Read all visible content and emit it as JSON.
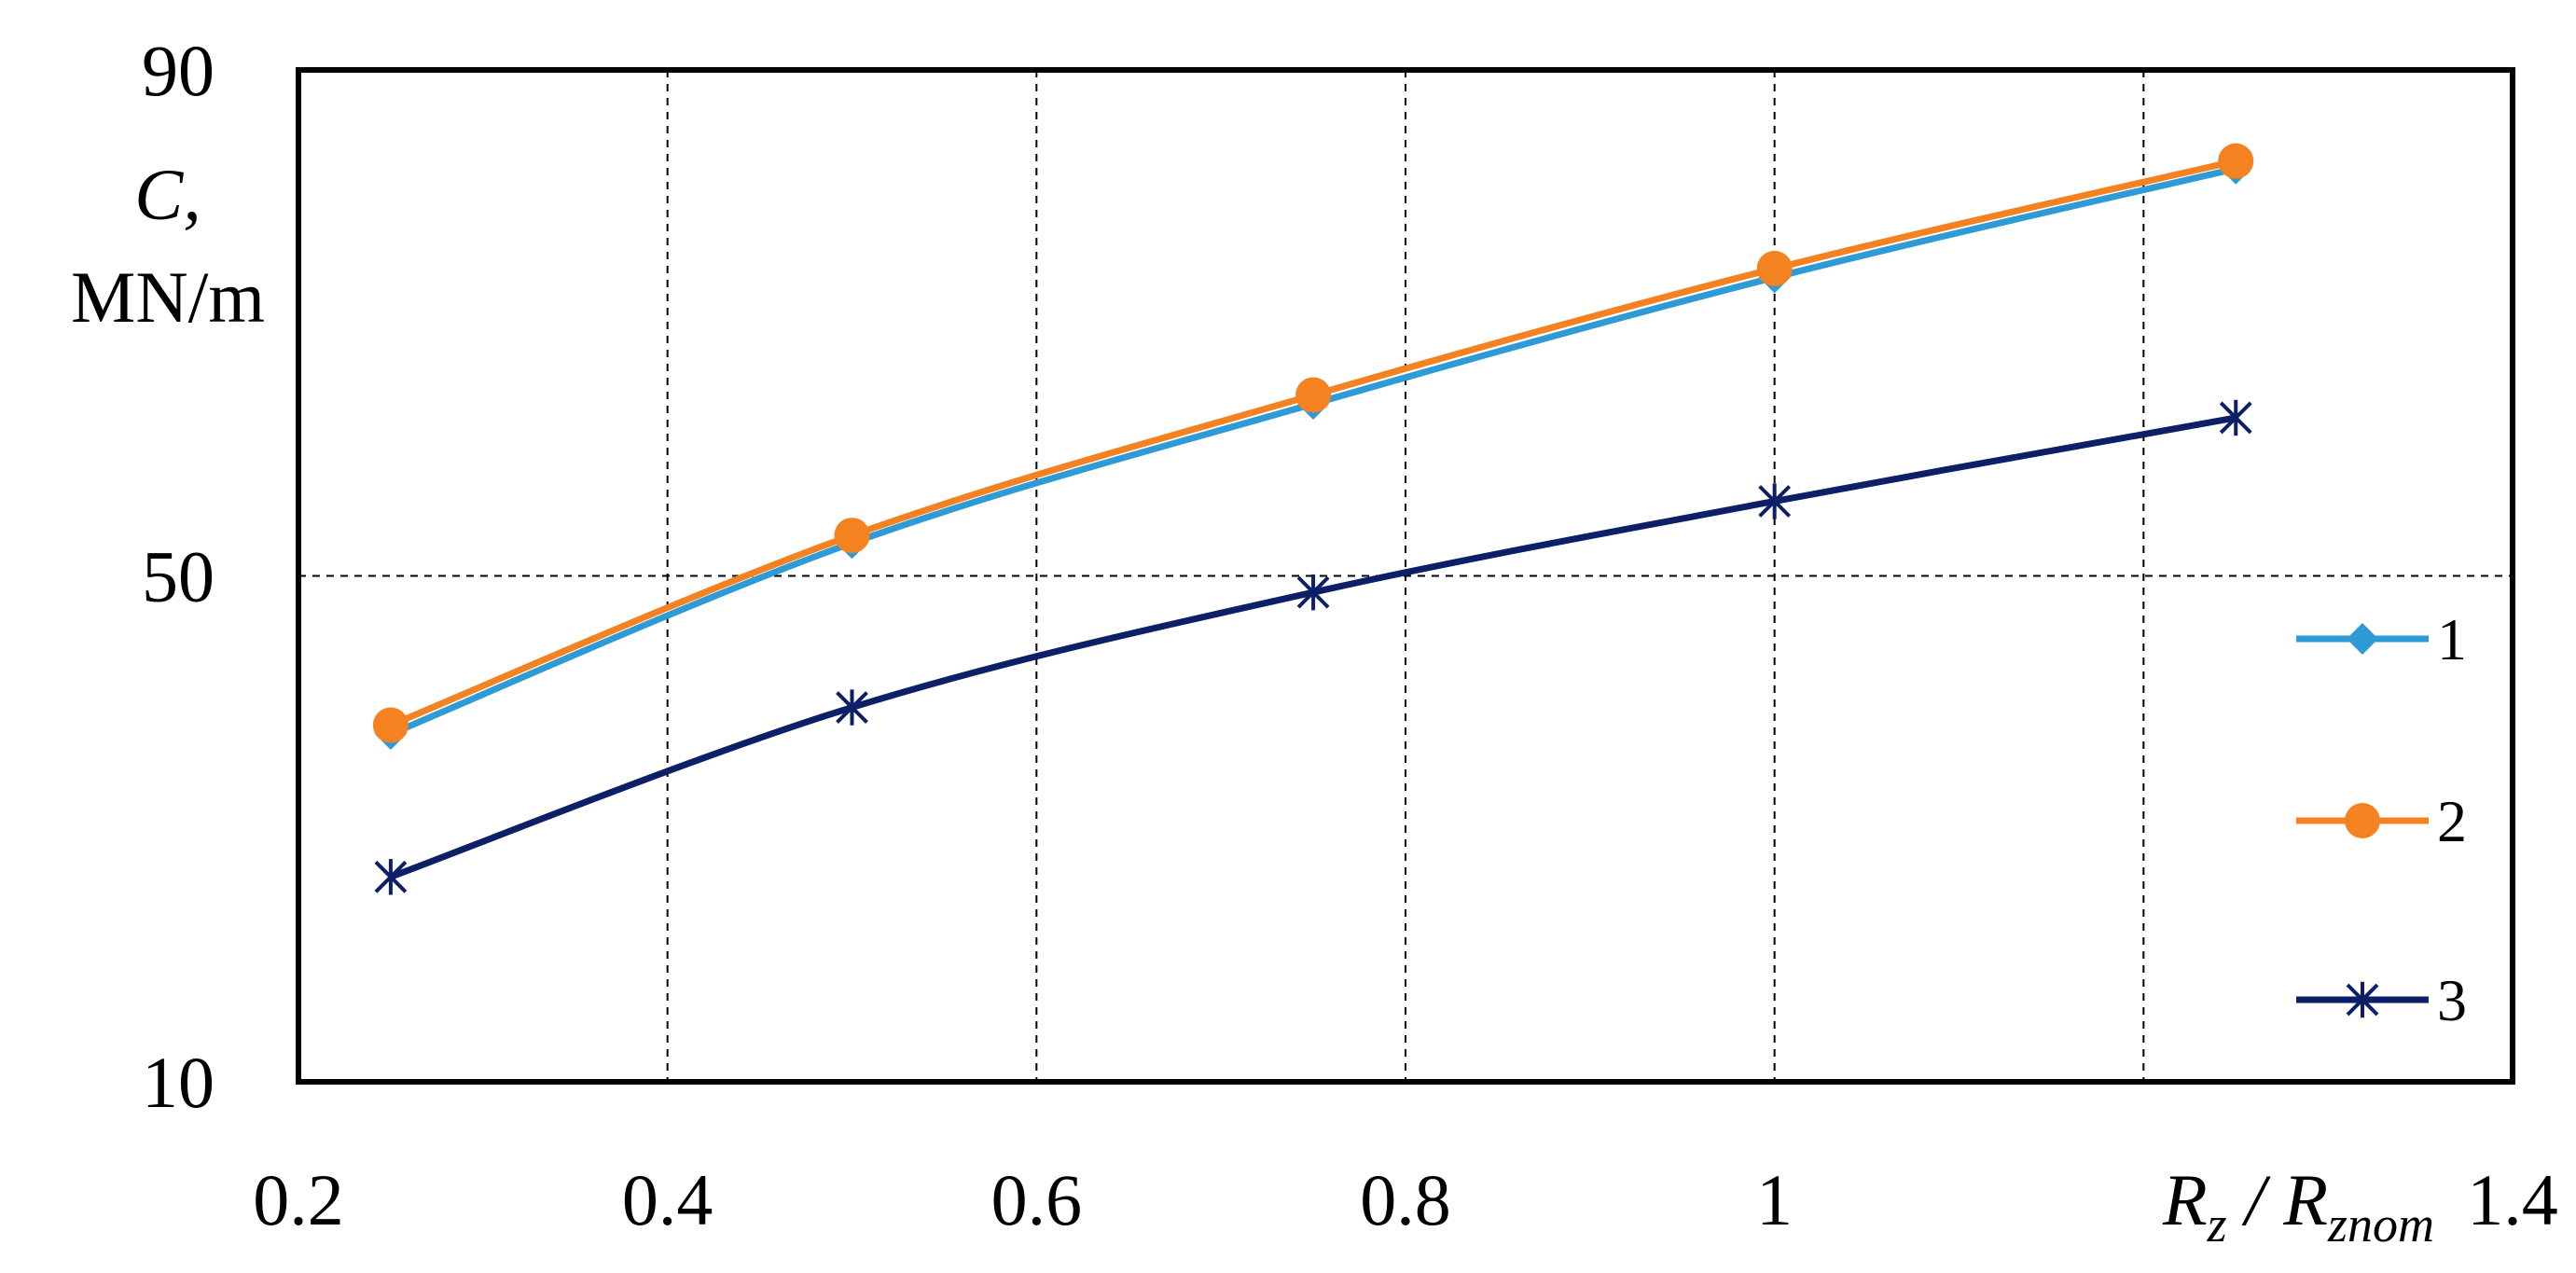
{
  "chart_data": {
    "type": "line",
    "x_ticks": [
      0.2,
      0.4,
      0.6,
      0.8,
      1,
      1.4
    ],
    "y_ticks": [
      10,
      50,
      90
    ],
    "xlim": [
      0.2,
      1.4
    ],
    "ylim": [
      10,
      90
    ],
    "xlabel": {
      "main": "R",
      "sub1": "z",
      "sep": " / R",
      "sub2": "znom"
    },
    "ylabel": [
      "C,",
      "MN/m"
    ],
    "grid": true,
    "legend_position": "right",
    "series": [
      {
        "name": "1",
        "color": "#2e9ad6",
        "marker": "diamond",
        "x": [
          0.25,
          0.5,
          0.75,
          1.0,
          1.25
        ],
        "y": [
          37.5,
          52.6,
          63.6,
          73.6,
          82.2
        ]
      },
      {
        "name": "2",
        "color": "#f58220",
        "marker": "circle",
        "x": [
          0.25,
          0.5,
          0.75,
          1.0,
          1.25
        ],
        "y": [
          38.2,
          53.2,
          64.3,
          74.3,
          82.8
        ]
      },
      {
        "name": "3",
        "color": "#0d1f66",
        "marker": "star",
        "x": [
          0.25,
          0.5,
          0.75,
          1.0,
          1.25
        ],
        "y": [
          26.2,
          39.6,
          48.7,
          55.9,
          62.5
        ]
      }
    ]
  }
}
